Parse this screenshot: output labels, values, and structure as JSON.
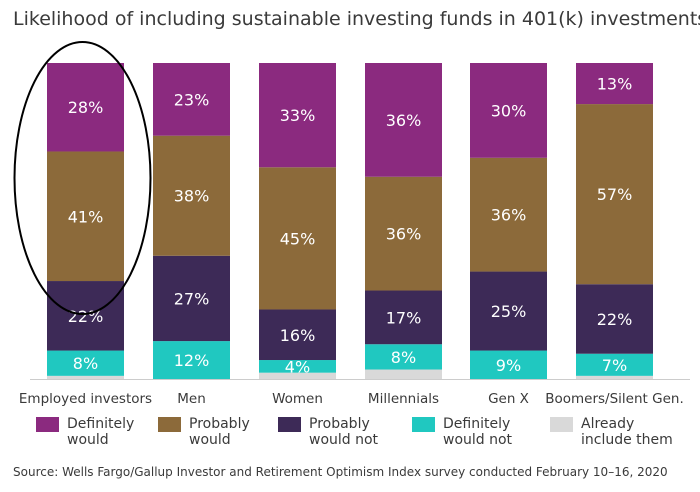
{
  "title": "Likelihood of including sustainable investing funds in 401(k) investments",
  "source": "Source: Wells Fargo/Gallup Investor and Retirement Optimism Index survey conducted February 10–16, 2020",
  "colors": {
    "definitely_would": "#8b2a7f",
    "probably_would": "#8c6a3a",
    "probably_would_not": "#3d2a57",
    "definitely_would_not": "#20c8c0",
    "already_include": "#d9d9d9",
    "label_text": "#ffffff",
    "baseline": "#cccccc",
    "highlight_ellipse": "#000000"
  },
  "legend": [
    {
      "key": "definitely_would",
      "label": "Definitely\nwould"
    },
    {
      "key": "probably_would",
      "label": "Probably\nwould"
    },
    {
      "key": "probably_would_not",
      "label": "Probably\nwould not"
    },
    {
      "key": "definitely_would_not",
      "label": "Definitely\nwould not"
    },
    {
      "key": "already_include",
      "label": "Already\ninclude them"
    }
  ],
  "chart_data": {
    "type": "bar",
    "stacked": true,
    "percent_stacked": true,
    "ylim": [
      0,
      100
    ],
    "grid": false,
    "legend_position": "bottom",
    "categories": [
      "Employed investors",
      "Men",
      "Women",
      "Millennials",
      "Gen X",
      "Boomers/Silent Gen."
    ],
    "series": [
      {
        "name": "Already include them",
        "key": "already_include",
        "values": [
          1,
          0,
          2,
          3,
          0,
          1
        ]
      },
      {
        "name": "Definitely would not",
        "key": "definitely_would_not",
        "values": [
          8,
          12,
          4,
          8,
          9,
          7
        ]
      },
      {
        "name": "Probably would not",
        "key": "probably_would_not",
        "values": [
          22,
          27,
          16,
          17,
          25,
          22
        ]
      },
      {
        "name": "Probably would",
        "key": "probably_would",
        "values": [
          41,
          38,
          45,
          36,
          36,
          57
        ]
      },
      {
        "name": "Definitely would",
        "key": "definitely_would",
        "values": [
          28,
          23,
          33,
          36,
          30,
          13
        ]
      }
    ],
    "value_labels": {
      "definitely_would": [
        "28%",
        "23%",
        "33%",
        "36%",
        "30%",
        "13%"
      ],
      "probably_would": [
        "41%",
        "38%",
        "45%",
        "36%",
        "36%",
        "57%"
      ],
      "probably_would_not": [
        "22%",
        "27%",
        "16%",
        "17%",
        "25%",
        "22%"
      ],
      "definitely_would_not": [
        "8%",
        "12%",
        "4%",
        "8%",
        "9%",
        "7%"
      ],
      "already_include": [
        "",
        "",
        "",
        "",
        "",
        ""
      ]
    },
    "highlighted_category": "Employed investors"
  }
}
